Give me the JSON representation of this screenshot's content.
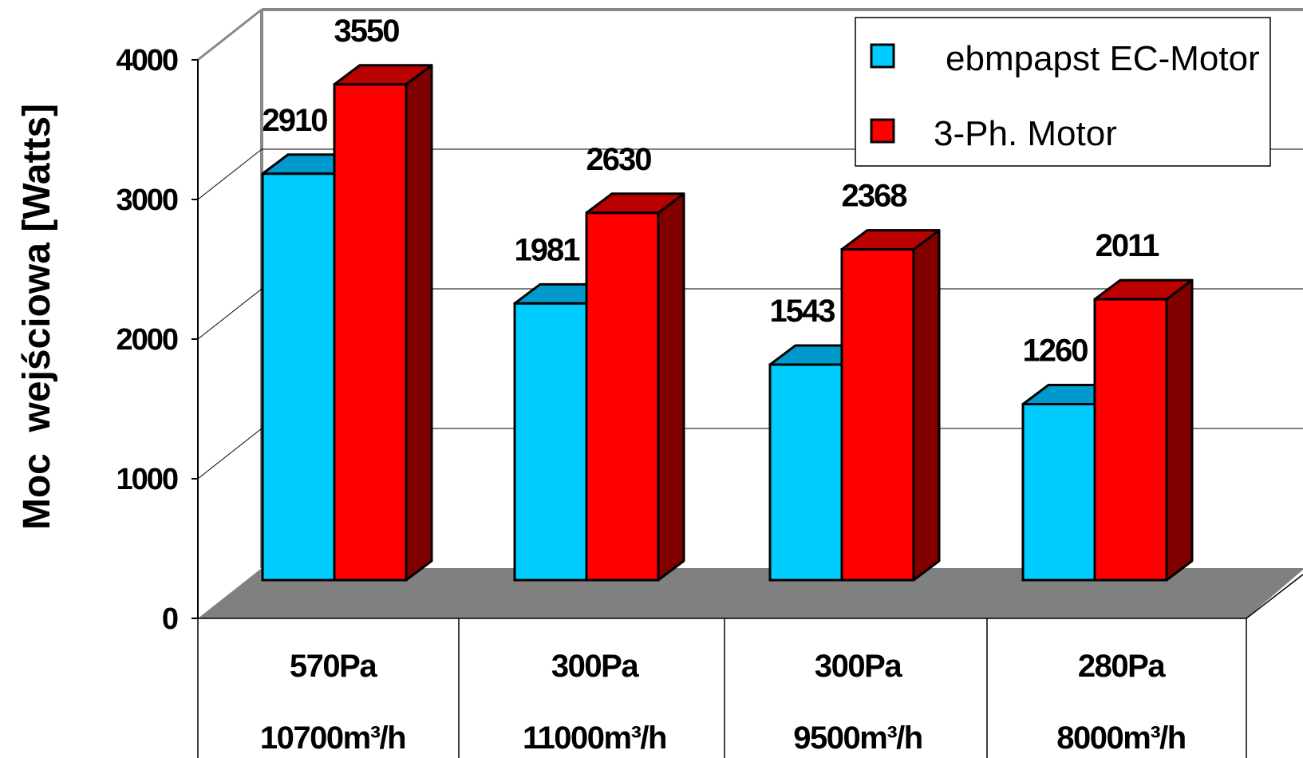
{
  "chart_data": {
    "type": "bar",
    "style": "3d-clustered-column",
    "ylabel": "Moc  wejściowa [Watts]",
    "ylim": [
      0,
      4000
    ],
    "yticks": [
      "0",
      "1000",
      "2000",
      "3000",
      "4000"
    ],
    "categories": [
      {
        "line1": "570Pa",
        "line2": "10700m³/h"
      },
      {
        "line1": "300Pa",
        "line2": "11000m³/h"
      },
      {
        "line1": "300Pa",
        "line2": "9500m³/h"
      },
      {
        "line1": "280Pa",
        "line2": "8000m³/h"
      }
    ],
    "series": [
      {
        "name": "ebmpapst EC-Motor",
        "color": "#00ccff",
        "values": [
          2910,
          1981,
          1543,
          1260
        ]
      },
      {
        "name": "3-Ph. Motor",
        "color": "#ff0000",
        "values": [
          3550,
          2630,
          2368,
          2011
        ]
      }
    ],
    "grid": true,
    "legend": "top-right",
    "data_labels": true
  }
}
